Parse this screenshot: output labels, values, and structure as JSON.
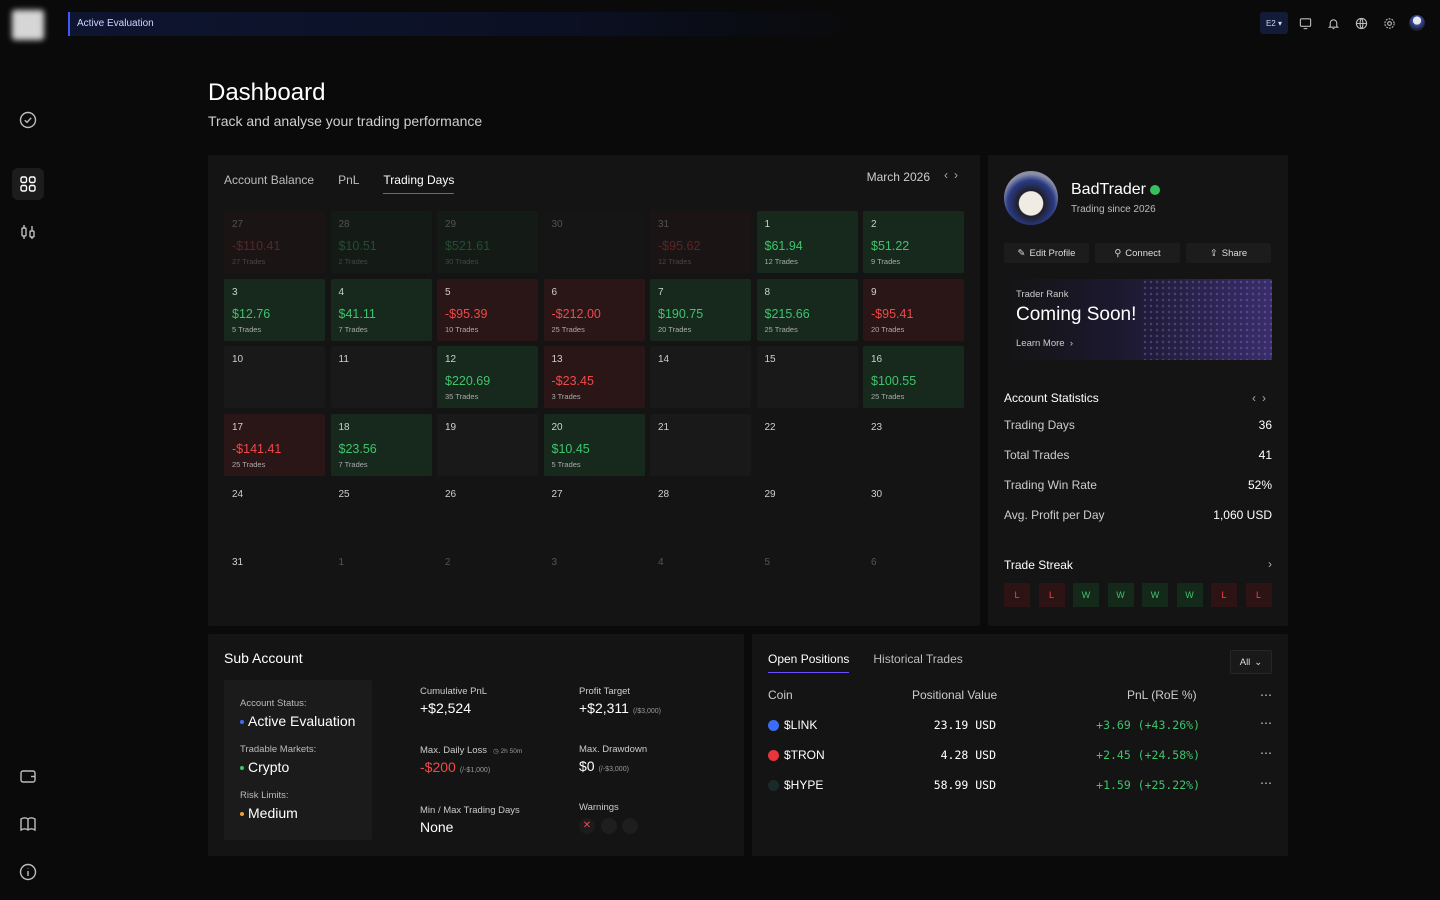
{
  "topbar": {
    "label": "Active Evaluation",
    "account_selector": "E2"
  },
  "page": {
    "title": "Dashboard",
    "subtitle": "Track and analyse your trading performance"
  },
  "calendar": {
    "tabs": [
      "Account Balance",
      "PnL",
      "Trading Days"
    ],
    "month": "March 2026",
    "cells": [
      {
        "d": "27",
        "v": "-$110.41",
        "t": "27 Trades",
        "s": "neg",
        "o": true
      },
      {
        "d": "28",
        "v": "$10.51",
        "t": "2 Trades",
        "s": "pos",
        "o": true
      },
      {
        "d": "29",
        "v": "$521.61",
        "t": "30 Trades",
        "s": "pos",
        "o": true
      },
      {
        "d": "30",
        "v": "",
        "t": "",
        "s": "",
        "o": true
      },
      {
        "d": "31",
        "v": "-$95.62",
        "t": "12 Trades",
        "s": "neg",
        "o": true
      },
      {
        "d": "1",
        "v": "$61.94",
        "t": "12 Trades",
        "s": "pos"
      },
      {
        "d": "2",
        "v": "$51.22",
        "t": "9 Trades",
        "s": "pos"
      },
      {
        "d": "3",
        "v": "$12.76",
        "t": "5 Trades",
        "s": "pos"
      },
      {
        "d": "4",
        "v": "$41.11",
        "t": "7 Trades",
        "s": "pos"
      },
      {
        "d": "5",
        "v": "-$95.39",
        "t": "10 Trades",
        "s": "neg"
      },
      {
        "d": "6",
        "v": "-$212.00",
        "t": "25 Trades",
        "s": "neg"
      },
      {
        "d": "7",
        "v": "$190.75",
        "t": "20 Trades",
        "s": "pos"
      },
      {
        "d": "8",
        "v": "$215.66",
        "t": "25 Trades",
        "s": "pos"
      },
      {
        "d": "9",
        "v": "-$95.41",
        "t": "20 Trades",
        "s": "neg"
      },
      {
        "d": "10",
        "v": "",
        "t": "",
        "s": ""
      },
      {
        "d": "11",
        "v": "",
        "t": "",
        "s": ""
      },
      {
        "d": "12",
        "v": "$220.69",
        "t": "35 Trades",
        "s": "pos"
      },
      {
        "d": "13",
        "v": "-$23.45",
        "t": "3 Trades",
        "s": "neg"
      },
      {
        "d": "14",
        "v": "",
        "t": "",
        "s": ""
      },
      {
        "d": "15",
        "v": "",
        "t": "",
        "s": ""
      },
      {
        "d": "16",
        "v": "$100.55",
        "t": "25 Trades",
        "s": "pos"
      },
      {
        "d": "17",
        "v": "-$141.41",
        "t": "25 Trades",
        "s": "neg"
      },
      {
        "d": "18",
        "v": "$23.56",
        "t": "7 Trades",
        "s": "pos"
      },
      {
        "d": "19",
        "v": "",
        "t": "",
        "s": ""
      },
      {
        "d": "20",
        "v": "$10.45",
        "t": "5 Trades",
        "s": "pos"
      },
      {
        "d": "21",
        "v": "",
        "t": "",
        "s": ""
      },
      {
        "d": "22",
        "v": "",
        "t": "",
        "s": "empty"
      },
      {
        "d": "23",
        "v": "",
        "t": "",
        "s": "empty"
      },
      {
        "d": "24",
        "v": "",
        "t": "",
        "s": "empty"
      },
      {
        "d": "25",
        "v": "",
        "t": "",
        "s": "empty"
      },
      {
        "d": "26",
        "v": "",
        "t": "",
        "s": "empty"
      },
      {
        "d": "27",
        "v": "",
        "t": "",
        "s": "empty"
      },
      {
        "d": "28",
        "v": "",
        "t": "",
        "s": "empty"
      },
      {
        "d": "29",
        "v": "",
        "t": "",
        "s": "empty"
      },
      {
        "d": "30",
        "v": "",
        "t": "",
        "s": "empty"
      },
      {
        "d": "31",
        "v": "",
        "t": "",
        "s": "empty"
      },
      {
        "d": "1",
        "v": "",
        "t": "",
        "s": "empty",
        "x": true
      },
      {
        "d": "2",
        "v": "",
        "t": "",
        "s": "empty",
        "x": true
      },
      {
        "d": "3",
        "v": "",
        "t": "",
        "s": "empty",
        "x": true
      },
      {
        "d": "4",
        "v": "",
        "t": "",
        "s": "empty",
        "x": true
      },
      {
        "d": "5",
        "v": "",
        "t": "",
        "s": "empty",
        "x": true
      },
      {
        "d": "6",
        "v": "",
        "t": "",
        "s": "empty",
        "x": true
      }
    ]
  },
  "profile": {
    "name": "BadTrader",
    "since": "Trading since 2026",
    "buttons": {
      "edit": "Edit Profile",
      "connect": "Connect",
      "share": "Share"
    },
    "rank": {
      "label": "Trader Rank",
      "status": "Coming Soon!",
      "link": "Learn More"
    },
    "stats_title": "Account Statistics",
    "stats": [
      {
        "k": "Trading Days",
        "v": "36"
      },
      {
        "k": "Total Trades",
        "v": "41"
      },
      {
        "k": "Trading Win Rate",
        "v": "52%"
      },
      {
        "k": "Avg. Profit per Day",
        "v": "1,060 USD"
      }
    ],
    "streak_title": "Trade Streak",
    "streak": [
      "L",
      "L",
      "W",
      "W",
      "W",
      "W",
      "L",
      "L"
    ]
  },
  "sub_account": {
    "title": "Sub Account",
    "status_label": "Account Status:",
    "status": "Active Evaluation",
    "markets_label": "Tradable Markets:",
    "markets": "Crypto",
    "risk_label": "Risk Limits:",
    "risk": "Medium",
    "cum_pnl_label": "Cumulative PnL",
    "cum_pnl": "+$2,524",
    "profit_target_label": "Profit Target",
    "profit_target": "+$2,311",
    "profit_target_sub": "(/$3,000)",
    "max_daily_loss_label": "Max. Daily Loss",
    "max_daily_loss_timer": "2h 50m",
    "max_daily_loss": "-$200",
    "max_daily_loss_sub": "(/-$1,000)",
    "max_drawdown_label": "Max. Drawdown",
    "max_drawdown": "$0",
    "max_drawdown_sub": "(/-$3,000)",
    "trading_days_label": "Min / Max Trading Days",
    "trading_days": "None",
    "warnings_label": "Warnings"
  },
  "positions": {
    "tabs": [
      "Open Positions",
      "Historical Trades"
    ],
    "filter": "All",
    "headers": {
      "coin": "Coin",
      "value": "Positional Value",
      "pnl": "PnL (RoE %)"
    },
    "rows": [
      {
        "coin": "$LINK",
        "value": "23.19 USD",
        "pnl": "+3.69 (+43.26%)",
        "color": "#3b6cf6"
      },
      {
        "coin": "$TRON",
        "value": "4.28 USD",
        "pnl": "+2.45 (+24.58%)",
        "color": "#e8343a"
      },
      {
        "coin": "$HYPE",
        "value": "58.99 USD",
        "pnl": "+1.59 (+25.22%)",
        "color": "#1a2a28"
      }
    ]
  },
  "colors": {
    "positive": "#3ec46d",
    "negative": "#ef4a4a",
    "accent": "#6b4fff"
  }
}
